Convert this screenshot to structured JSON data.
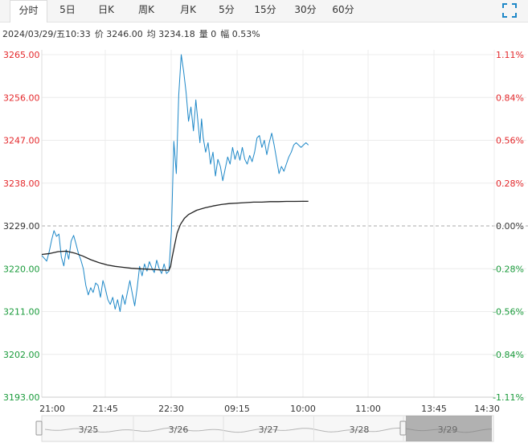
{
  "tabs": [
    {
      "label": "分时",
      "active": true
    },
    {
      "label": "5日"
    },
    {
      "label": "日K"
    },
    {
      "label": "周K"
    },
    {
      "label": "月K"
    },
    {
      "label": "5分"
    },
    {
      "label": "15分"
    },
    {
      "label": "30分"
    },
    {
      "label": "60分"
    }
  ],
  "info": {
    "datetime": "2024/03/29/五10:33",
    "price": "价 3246.00",
    "avg": "均 3234.18",
    "volume": "量 0",
    "change": "幅 0.53%"
  },
  "colors": {
    "up": "#e4292c",
    "down": "#1a9b3b",
    "flat": "#333333",
    "price_line": "#1e88c8",
    "avg_line": "#222222"
  },
  "chart_data": {
    "type": "line",
    "ylim": [
      3193.0,
      3265.0
    ],
    "y_ticks": [
      "3265.00",
      "3256.00",
      "3247.00",
      "3238.00",
      "3229.00",
      "3220.00",
      "3211.00",
      "3202.00",
      "3193.00"
    ],
    "pct_ticks": [
      "1.11%",
      "0.84%",
      "0.56%",
      "0.28%",
      "0.00%",
      "-0.28%",
      "-0.56%",
      "-0.84%",
      "-1.11%"
    ],
    "x_ticks": [
      "21:00",
      "21:45",
      "22:30",
      "09:15",
      "10:00",
      "11:00",
      "13:45",
      "14:30"
    ],
    "prev_close": 3229.0,
    "n_slots": 555,
    "series": [
      {
        "name": "价",
        "x": [
          0,
          3,
          6,
          9,
          12,
          15,
          18,
          21,
          24,
          27,
          30,
          33,
          36,
          39,
          42,
          45,
          48,
          51,
          54,
          57,
          60,
          63,
          66,
          69,
          72,
          75,
          78,
          81,
          84,
          87,
          90,
          93,
          96,
          99,
          102,
          105,
          108,
          111,
          114,
          117,
          120,
          123,
          126,
          129,
          132,
          135,
          138,
          141,
          144,
          147,
          150,
          153,
          156,
          159,
          162,
          165,
          168,
          171,
          174,
          177,
          180,
          183,
          186,
          189,
          192,
          194,
          195,
          196,
          198,
          201,
          204,
          207,
          210,
          213,
          216,
          219,
          222,
          225,
          228,
          231,
          234,
          237,
          240,
          243,
          246,
          249,
          252,
          255,
          258,
          261,
          264,
          267,
          270,
          273,
          276,
          279,
          282,
          285,
          288,
          291,
          294,
          297,
          300,
          303,
          306,
          309,
          312,
          315,
          318,
          321,
          324,
          327
        ],
        "values": [
          3222.8,
          3222.2,
          3221.6,
          3223.5,
          3226.0,
          3228.0,
          3226.8,
          3227.3,
          3222.5,
          3220.6,
          3224.0,
          3222.0,
          3225.8,
          3227.0,
          3225.2,
          3223.2,
          3221.8,
          3220.0,
          3216.5,
          3214.5,
          3216.0,
          3215.0,
          3217.0,
          3216.5,
          3214.0,
          3217.5,
          3215.8,
          3213.5,
          3212.5,
          3214.0,
          3211.5,
          3213.5,
          3211.0,
          3214.5,
          3212.5,
          3215.0,
          3217.5,
          3214.8,
          3212.2,
          3216.0,
          3220.5,
          3218.5,
          3221.0,
          3219.5,
          3221.5,
          3220.2,
          3219.2,
          3221.8,
          3220.0,
          3219.0,
          3221.0,
          3219.0,
          3219.5,
          3228.0,
          3246.8,
          3240.0,
          3256.5,
          3265.0,
          3261.5,
          3257.0,
          3251.0,
          3254.0,
          3249.0,
          3255.5,
          3250.0,
          3246.5,
          3249.0,
          3251.5,
          3247.5,
          3244.5,
          3246.5,
          3242.0,
          3244.5,
          3239.5,
          3243.0,
          3241.5,
          3238.5,
          3241.0,
          3243.5,
          3242.0,
          3245.5,
          3243.0,
          3244.8,
          3242.8,
          3245.5,
          3243.0,
          3242.0,
          3243.8,
          3242.5,
          3244.5,
          3247.5,
          3248.0,
          3245.5,
          3247.0,
          3244.0,
          3246.5,
          3248.5,
          3246.0,
          3243.0,
          3240.0,
          3241.5,
          3240.5,
          3242.0,
          3243.5,
          3244.5,
          3246.0,
          3246.5,
          3246.0,
          3245.5,
          3246.0,
          3246.5,
          3246.0
        ]
      },
      {
        "name": "均",
        "x": [
          0,
          10,
          20,
          30,
          40,
          50,
          60,
          70,
          80,
          90,
          100,
          110,
          120,
          130,
          140,
          150,
          156,
          158,
          160,
          163,
          166,
          170,
          175,
          180,
          190,
          200,
          210,
          220,
          230,
          240,
          250,
          260,
          270,
          280,
          290,
          300,
          310,
          320,
          327
        ],
        "values": [
          3223.0,
          3223.2,
          3223.6,
          3223.7,
          3223.3,
          3222.7,
          3221.9,
          3221.3,
          3220.8,
          3220.5,
          3220.3,
          3220.1,
          3220.0,
          3219.9,
          3219.8,
          3219.7,
          3219.7,
          3220.5,
          3222.5,
          3225.0,
          3227.5,
          3229.3,
          3230.6,
          3231.4,
          3232.3,
          3232.8,
          3233.2,
          3233.5,
          3233.7,
          3233.8,
          3233.9,
          3234.0,
          3234.0,
          3234.1,
          3234.1,
          3234.15,
          3234.15,
          3234.18,
          3234.18
        ]
      }
    ],
    "navigator": {
      "labels": [
        "3/25",
        "3/26",
        "3/27",
        "3/28",
        "3/29"
      ]
    }
  }
}
